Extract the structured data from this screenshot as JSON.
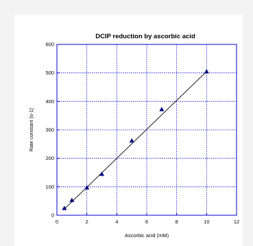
{
  "chart_data": {
    "type": "scatter",
    "title": "DCIP reduction by ascorbic acid",
    "xlabel": "Ascorbic acid (mM)",
    "ylabel": "Rate constant (s-1)",
    "xlim": [
      0,
      12
    ],
    "ylim": [
      0,
      600
    ],
    "x_ticks": [
      0,
      2,
      4,
      6,
      8,
      10,
      12
    ],
    "y_ticks": [
      0,
      100,
      200,
      300,
      400,
      500,
      600
    ],
    "grid": true,
    "grid_style": "dotted",
    "grid_color": "#0000cc",
    "axis_color": "#0000cc",
    "marker_color": "#000080",
    "marker": "triangle",
    "points": [
      {
        "x": 0.5,
        "y": 25
      },
      {
        "x": 1,
        "y": 53
      },
      {
        "x": 2,
        "y": 97
      },
      {
        "x": 3,
        "y": 145
      },
      {
        "x": 5,
        "y": 262
      },
      {
        "x": 7,
        "y": 372
      },
      {
        "x": 10,
        "y": 505
      }
    ],
    "fit_line": {
      "x_start": 0.5,
      "y_start": 22,
      "x_end": 10,
      "y_end": 505
    }
  }
}
